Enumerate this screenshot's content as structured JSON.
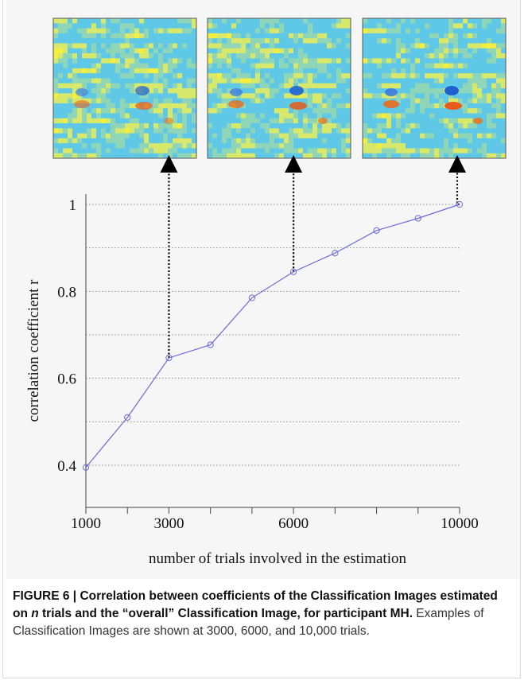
{
  "caption": {
    "figure_label": "FIGURE 6 | ",
    "bold_part1": "Correlation between coefficients of the Classification Images estimated on ",
    "italic_n": "n",
    "bold_part2": " trials and the “overall” Classification Image, for participant MH.",
    "normal_part": " Examples of Classification Images are shown at 3000, 6000, and 10,000 trials."
  },
  "chart_data": {
    "type": "line",
    "x": [
      1000,
      2000,
      3000,
      4000,
      5000,
      6000,
      7000,
      8000,
      9000,
      10000
    ],
    "series": [
      {
        "values": [
          0.395,
          0.51,
          0.647,
          0.677,
          0.785,
          0.845,
          0.888,
          0.94,
          0.968,
          1.0
        ],
        "color": "#6b6bd6"
      }
    ],
    "xlabel": "number of trials involved in the estimation",
    "ylabel": "correlation coefficient r",
    "xlim": [
      1000,
      10000
    ],
    "ylim": [
      0.33,
      1.0
    ],
    "xticks": [
      1000,
      2000,
      3000,
      4000,
      5000,
      6000,
      7000,
      8000,
      9000,
      10000
    ],
    "xtick_labels": [
      "1000",
      "3000",
      "6000",
      "10000"
    ],
    "yticks": [
      0.4,
      0.6,
      0.8,
      1.0
    ],
    "ytick_labels": [
      "0.4",
      "0.6",
      "0.8",
      "1"
    ],
    "grid": "horizontal dotted",
    "classification_image_trials": [
      3000,
      6000,
      10000
    ]
  }
}
